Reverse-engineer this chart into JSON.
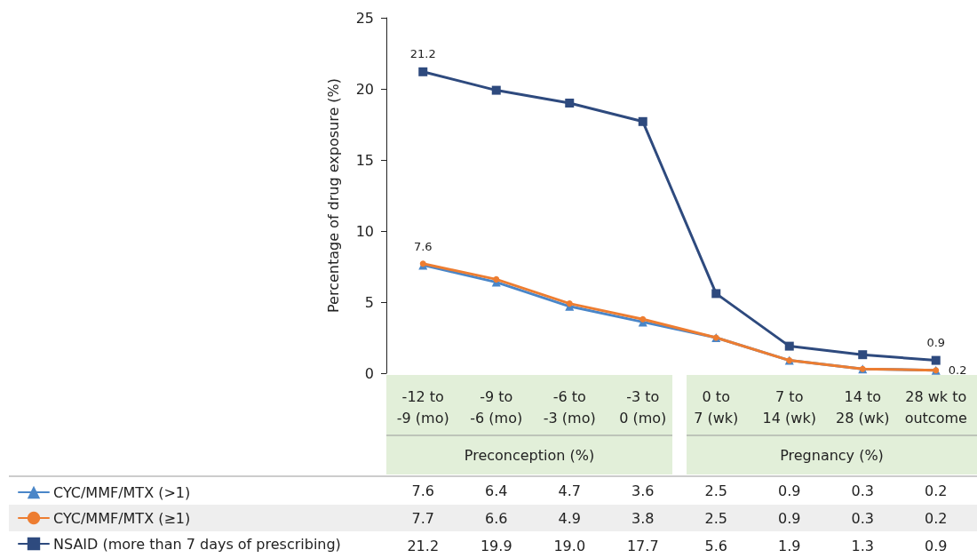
{
  "chart_data": {
    "type": "line",
    "ylabel": "Percentage of drug exposure (%)",
    "categories": [
      "-12 to\n-9 (mo)",
      "-9 to\n-6 (mo)",
      "-6 to\n-3 (mo)",
      "-3 to\n0 (mo)",
      "0 to\n7 (wk)",
      "7 to\n14 (wk)",
      "14 to\n28 (wk)",
      "28 wk to\noutcome"
    ],
    "series": [
      {
        "name": "CYC/MMF/MTX (>1)",
        "color": "#4a86c8",
        "marker": "triangle",
        "values": [
          7.6,
          6.4,
          4.7,
          3.6,
          2.5,
          0.9,
          0.3,
          0.2
        ],
        "value_labels": [
          "7.6",
          "6.4",
          "4.7",
          "3.6",
          "2.5",
          "0.9",
          "0.3",
          "0.2"
        ]
      },
      {
        "name": "CYC/MMF/MTX (≥1)",
        "color": "#ed7d31",
        "marker": "circle",
        "values": [
          7.7,
          6.6,
          4.9,
          3.8,
          2.5,
          0.9,
          0.3,
          0.2
        ],
        "value_labels": [
          "7.7",
          "6.6",
          "4.9",
          "3.8",
          "2.5",
          "0.9",
          "0.3",
          "0.2"
        ]
      },
      {
        "name": "NSAID (more than 7 days of prescribing)",
        "color": "#2e4a7e",
        "marker": "square",
        "values": [
          21.2,
          19.9,
          19.0,
          17.7,
          5.6,
          1.9,
          1.3,
          0.9
        ],
        "value_labels": [
          "21.2",
          "19.9",
          "19.0",
          "17.7",
          "5.6",
          "1.9",
          "1.3",
          "0.9"
        ]
      }
    ],
    "annotations": [
      "Preconception (%)",
      "Pregnancy (%)",
      {
        "text": "21.2",
        "x": "-12 to\n-9 (mo)",
        "y": 21.2
      },
      {
        "text": "7.6",
        "x": "-12 to\n-9 (mo)",
        "y": 7.6
      },
      {
        "text": "0.9",
        "x": "28 wk to\noutcome",
        "y": 0.9
      },
      {
        "text": "0.2",
        "x": "28 wk to\noutcome",
        "y": 0.2
      }
    ],
    "ylim": [
      0,
      25
    ],
    "yticks": [
      0,
      5,
      10,
      15,
      20,
      25
    ],
    "grid": false,
    "legend": "bottom left"
  }
}
